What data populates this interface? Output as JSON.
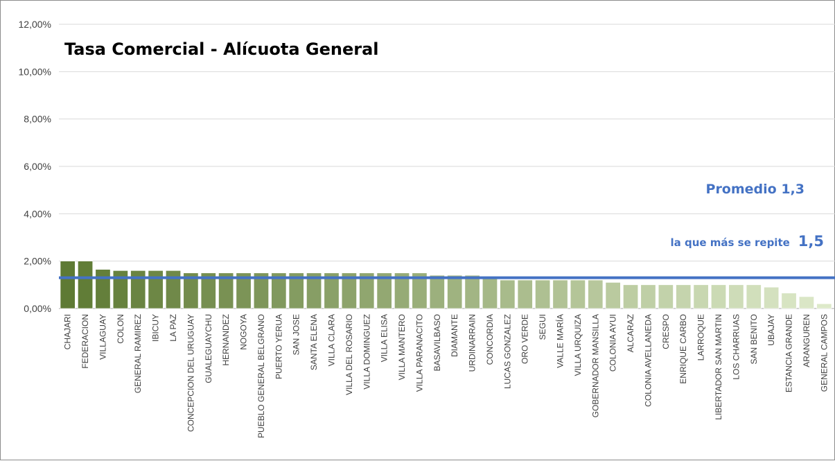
{
  "chart_data": {
    "type": "bar",
    "title": "Tasa Comercial - Alícuota General",
    "xlabel": "",
    "ylabel": "",
    "ylim": [
      0,
      12
    ],
    "yticks": [
      "0,00%",
      "2,00%",
      "4,00%",
      "6,00%",
      "8,00%",
      "10,00%",
      "12,00%"
    ],
    "ytick_values": [
      0,
      2,
      4,
      6,
      8,
      10,
      12
    ],
    "grid": true,
    "categories": [
      "CHAJARI",
      "FEDERACION",
      "VILLAGUAY",
      "COLON",
      "GENERAL RAMIREZ",
      "IBICUY",
      "LA PAZ",
      "CONCEPCION DEL URUGUAY",
      "GUALEGUAYCHU",
      "HERNANDEZ",
      "NOGOYA",
      "PUEBLO GENERAL BELGRANO",
      "PUERTO YERUA",
      "SAN JOSE",
      "SANTA ELENA",
      "VILLA CLARA",
      "VILLA DEL ROSARIO",
      "VILLA DOMINGUEZ",
      "VILLA ELISA",
      "VILLA MANTERO",
      "VILLA PARANACITO",
      "BASAVILBASO",
      "DIAMANTE",
      "URDINARRAIN",
      "CONCORDIA",
      "LUCAS GONZALEZ",
      "ORO VERDE",
      "SEGUI",
      "VALLE MARÍA",
      "VILLA URQUIZA",
      "GOBERNADOR MANSILLA",
      "COLONIA AYUI",
      "ALCARAZ",
      "COLONIA AVELLANEDA",
      "CRESPO",
      "ENRIQUE CARBO",
      "LARROQUE",
      "LIBERTADOR SAN MARTIN",
      "LOS CHARRUAS",
      "SAN BENITO",
      "UBAJAY",
      "ESTANCIA GRANDE",
      "ARANGUREN",
      "GENERAL CAMPOS"
    ],
    "values": [
      2.0,
      2.0,
      1.65,
      1.6,
      1.6,
      1.6,
      1.6,
      1.5,
      1.5,
      1.5,
      1.5,
      1.5,
      1.5,
      1.5,
      1.5,
      1.5,
      1.5,
      1.5,
      1.5,
      1.5,
      1.5,
      1.4,
      1.4,
      1.4,
      1.3,
      1.2,
      1.2,
      1.2,
      1.2,
      1.2,
      1.2,
      1.1,
      1.0,
      1.0,
      1.0,
      1.0,
      1.0,
      1.0,
      1.0,
      1.0,
      0.9,
      0.65,
      0.5,
      0.2
    ],
    "average_line": 1.3,
    "colors": {
      "bar_dark": "#5e7a34",
      "bar_light": "#dde9c9",
      "line": "#4472c4",
      "grid": "#d9d9d9"
    },
    "annotations": {
      "promedio": "Promedio 1,3",
      "moda_text": "la que más se repite",
      "moda_value": "1,5"
    }
  }
}
